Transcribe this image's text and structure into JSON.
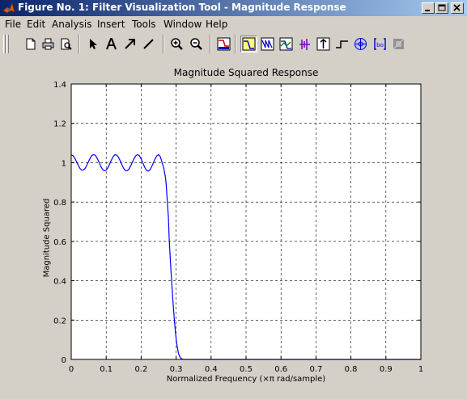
{
  "window": {
    "title": "Figure No. 1: Filter Visualization Tool - Magnitude Response"
  },
  "menu": [
    "File",
    "Edit",
    "Analysis",
    "Insert",
    "Tools",
    "Window",
    "Help"
  ],
  "toolbar": {
    "icons": [
      "new-file-icon",
      "print-icon",
      "print-preview-icon",
      "select-arrow-icon",
      "insert-text-icon",
      "insert-arrow-icon",
      "insert-line-icon",
      "zoom-in-icon",
      "zoom-out-icon",
      "filter-specifications-icon",
      "magnitude-response-icon",
      "phase-response-icon",
      "magnitude-phase-icon",
      "group-delay-icon",
      "impulse-response-icon",
      "step-response-icon",
      "pole-zero-icon",
      "filter-coefficients-icon",
      "filter-information-icon"
    ],
    "pressed": "magnitude-response-icon"
  },
  "colors": {
    "titlebar_start": "#0a246a",
    "titlebar_end": "#a6caf0",
    "line": "#0000ff",
    "grid": "#000000"
  },
  "chart_data": {
    "type": "line",
    "title": "Magnitude Squared Response",
    "xlabel": "Normalized Frequency  (×π rad/sample)",
    "ylabel": "Magnitude Squared",
    "xlim": [
      0,
      1
    ],
    "ylim": [
      0,
      1.4
    ],
    "xticks": [
      "0",
      "0.1",
      "0.2",
      "0.3",
      "0.4",
      "0.5",
      "0.6",
      "0.7",
      "0.8",
      "0.9",
      "1"
    ],
    "yticks": [
      "0",
      "0.2",
      "0.4",
      "0.6",
      "0.8",
      "1",
      "1.2",
      "1.4"
    ],
    "grid": true,
    "series": [
      {
        "color": "#0000ff",
        "x": [
          0,
          0.005,
          0.01,
          0.015,
          0.02,
          0.025,
          0.03,
          0.035,
          0.04,
          0.045,
          0.05,
          0.055,
          0.06,
          0.065,
          0.07,
          0.075,
          0.08,
          0.085,
          0.09,
          0.095,
          0.1,
          0.105,
          0.11,
          0.115,
          0.12,
          0.125,
          0.13,
          0.135,
          0.14,
          0.145,
          0.15,
          0.155,
          0.16,
          0.165,
          0.17,
          0.175,
          0.18,
          0.185,
          0.19,
          0.195,
          0.2,
          0.205,
          0.21,
          0.215,
          0.22,
          0.225,
          0.23,
          0.235,
          0.24,
          0.245,
          0.25,
          0.255,
          0.26,
          0.265,
          0.27,
          0.272,
          0.275,
          0.278,
          0.28,
          0.283,
          0.286,
          0.289,
          0.292,
          0.295,
          0.298,
          0.301,
          0.304,
          0.307,
          0.31,
          0.313,
          0.316,
          0.319,
          0.322,
          0.325,
          0.33,
          0.34,
          0.36,
          0.4,
          0.5,
          0.6,
          0.7,
          0.8,
          0.9,
          1.0
        ],
        "y": [
          1.04,
          1.036,
          1.024,
          1.006,
          0.987,
          0.971,
          0.962,
          0.963,
          0.972,
          0.989,
          1.008,
          1.026,
          1.038,
          1.041,
          1.035,
          1.02,
          1.0,
          0.98,
          0.965,
          0.959,
          0.962,
          0.975,
          0.994,
          1.014,
          1.031,
          1.04,
          1.039,
          1.028,
          1.01,
          0.99,
          0.971,
          0.96,
          0.959,
          0.967,
          0.983,
          1.003,
          1.022,
          1.036,
          1.041,
          1.035,
          1.019,
          0.998,
          0.977,
          0.962,
          0.957,
          0.963,
          0.979,
          1.0,
          1.02,
          1.035,
          1.041,
          1.03,
          1.0,
          0.97,
          0.92,
          0.88,
          0.8,
          0.72,
          0.62,
          0.52,
          0.43,
          0.35,
          0.27,
          0.2,
          0.14,
          0.09,
          0.055,
          0.03,
          0.015,
          0.007,
          0.003,
          0.001,
          0.0003,
          0.0001,
          0,
          0,
          0,
          0,
          0,
          0,
          0,
          0,
          0,
          0
        ]
      }
    ]
  }
}
